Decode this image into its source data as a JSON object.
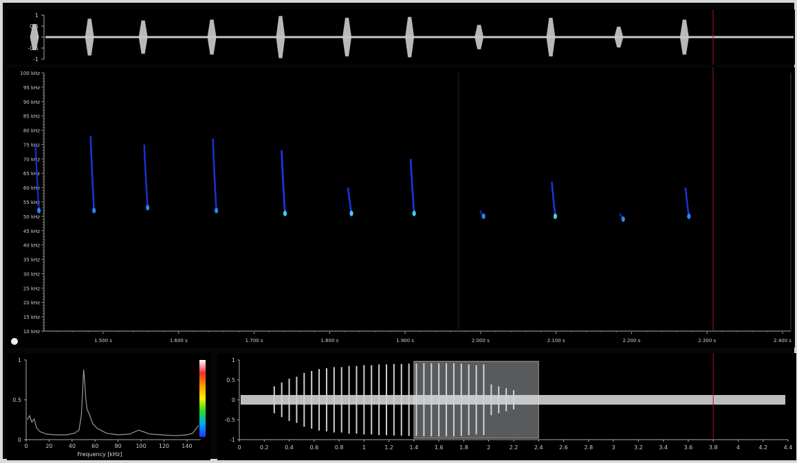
{
  "waveform": {
    "y_ticks": [
      "1",
      "0.5",
      "0",
      "-0.5",
      "-1"
    ]
  },
  "spectrogram": {
    "freq_ticks": [
      "100 kHz",
      "95 kHz",
      "90 kHz",
      "85 kHz",
      "80 kHz",
      "75 kHz",
      "70 kHz",
      "65 kHz",
      "60 kHz",
      "55 kHz",
      "50 kHz",
      "45 kHz",
      "40 kHz",
      "35 kHz",
      "30 kHz",
      "25 kHz",
      "20 kHz",
      "15 kHz",
      "10 kHz"
    ],
    "time_ticks": [
      "1.500 s",
      "1.600 s",
      "1.700 s",
      "1.800 s",
      "1.900 s",
      "2.000 s",
      "2.100 s",
      "2.200 s",
      "2.300 s",
      "2.400 s"
    ],
    "calls": [
      {
        "time_s": 1.414,
        "f_low_khz": 52,
        "f_high_khz": 75,
        "bright": 0.5
      },
      {
        "time_s": 1.487,
        "f_low_khz": 52,
        "f_high_khz": 78,
        "bright": 0.8
      },
      {
        "time_s": 1.558,
        "f_low_khz": 53,
        "f_high_khz": 75,
        "bright": 0.7
      },
      {
        "time_s": 1.649,
        "f_low_khz": 52,
        "f_high_khz": 77,
        "bright": 0.75
      },
      {
        "time_s": 1.74,
        "f_low_khz": 51,
        "f_high_khz": 73,
        "bright": 0.95
      },
      {
        "time_s": 1.828,
        "f_low_khz": 51,
        "f_high_khz": 60,
        "bright": 0.85
      },
      {
        "time_s": 1.911,
        "f_low_khz": 51,
        "f_high_khz": 70,
        "bright": 0.9
      },
      {
        "time_s": 2.003,
        "f_low_khz": 50,
        "f_high_khz": 52,
        "bright": 0.45
      },
      {
        "time_s": 2.098,
        "f_low_khz": 50,
        "f_high_khz": 62,
        "bright": 0.85
      },
      {
        "time_s": 2.188,
        "f_low_khz": 49,
        "f_high_khz": 51,
        "bright": 0.35
      },
      {
        "time_s": 2.275,
        "f_low_khz": 50,
        "f_high_khz": 60,
        "bright": 0.75
      }
    ]
  },
  "spectrum": {
    "y_ticks": [
      "1",
      "0.5",
      "0"
    ],
    "x_ticks": [
      "0",
      "20",
      "40",
      "60",
      "80",
      "100",
      "120",
      "140"
    ],
    "xlabel": "Frequency [kHz]",
    "colorbar": [
      "#ffffff",
      "#ff2a2a",
      "#ff9900",
      "#ffee00",
      "#22dd22",
      "#00aaff",
      "#2233ff"
    ]
  },
  "overview": {
    "y_ticks": [
      "1",
      "0.5",
      "0",
      "-0.5",
      "-1"
    ],
    "x_ticks": [
      "0",
      "0.2",
      "0.4",
      "0.6",
      "0.8",
      "1",
      "1.2",
      "1.4",
      "1.6",
      "1.8",
      "2",
      "2.2",
      "2.4",
      "2.6",
      "2.8",
      "3",
      "3.2",
      "3.4",
      "3.6",
      "3.8",
      "4",
      "4.2",
      "4.4"
    ],
    "selection": {
      "start": 1.4,
      "end": 2.4
    },
    "cursor": 3.8
  },
  "cursor_time_s": 2.308,
  "colors": {
    "waveform": "#c8c8c8",
    "cursor": "#b0142a",
    "spec_blue": "#1f3cff",
    "spec_cyan": "#48d8ff"
  }
}
